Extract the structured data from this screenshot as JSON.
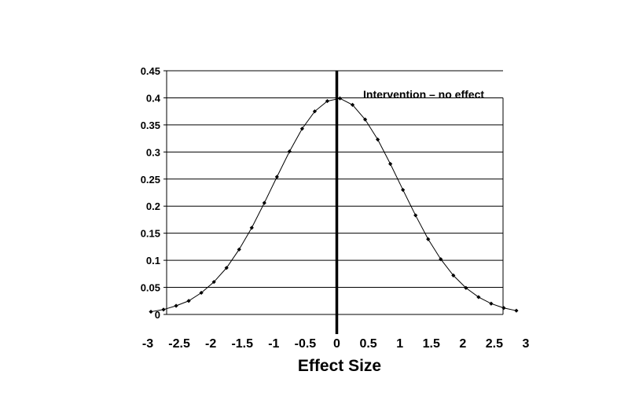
{
  "chart_data": {
    "type": "line",
    "title": "",
    "xlabel": "Effect Size",
    "ylabel": "",
    "xlim": [
      -3,
      3
    ],
    "ylim": [
      0,
      0.45
    ],
    "grid": "horizontal",
    "x_tick_labels": [
      "-3",
      "-2.5",
      "-2",
      "-1.5",
      "-1",
      "-0.5",
      "0",
      "0.5",
      "1",
      "1.5",
      "2",
      "2.5",
      "3"
    ],
    "x_ticks": [
      -3,
      -2.5,
      -2,
      -1.5,
      -1,
      -0.5,
      0,
      0.5,
      1,
      1.5,
      2,
      2.5,
      3
    ],
    "y_tick_labels": [
      "0",
      "0.05",
      "0.1",
      "0.15",
      "0.2",
      "0.25",
      "0.3",
      "0.35",
      "0.4",
      "0.45"
    ],
    "y_ticks": [
      0,
      0.05,
      0.1,
      0.15,
      0.2,
      0.25,
      0.3,
      0.35,
      0.4,
      0.45
    ],
    "series": [
      {
        "x": [
          -2.95,
          -2.75,
          -2.55,
          -2.35,
          -2.15,
          -1.95,
          -1.75,
          -1.55,
          -1.35,
          -1.15,
          -0.95,
          -0.75,
          -0.55,
          -0.35,
          -0.15,
          0.05,
          0.25,
          0.45,
          0.65,
          0.85,
          1.05,
          1.25,
          1.45,
          1.65,
          1.85,
          2.05,
          2.25,
          2.45,
          2.65,
          2.85
        ],
        "y": [
          0.005,
          0.009,
          0.016,
          0.025,
          0.04,
          0.06,
          0.086,
          0.12,
          0.16,
          0.206,
          0.254,
          0.301,
          0.343,
          0.375,
          0.394,
          0.399,
          0.387,
          0.36,
          0.323,
          0.278,
          0.23,
          0.183,
          0.139,
          0.102,
          0.072,
          0.049,
          0.032,
          0.02,
          0.012,
          0.007
        ]
      }
    ],
    "annotation": {
      "text": "Intervention – no effect",
      "x": 0
    }
  }
}
